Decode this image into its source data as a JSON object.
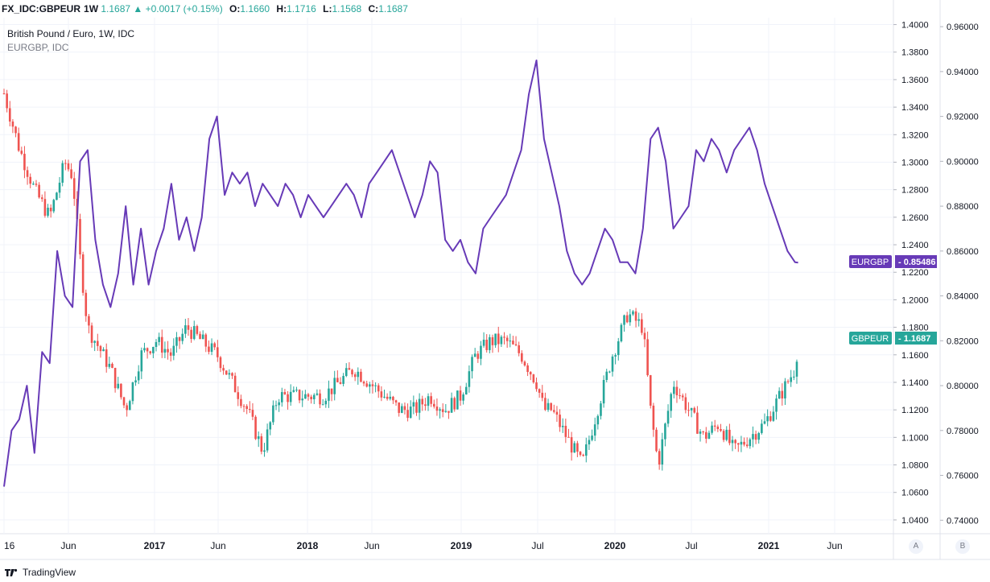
{
  "header": {
    "symbol": "FX_IDC:GBPEUR",
    "timeframe": "1W",
    "last": "1.1687",
    "change": "▲ +0.0017 (+0.15%)",
    "open_label": "O:",
    "open": "1.1660",
    "high_label": "H:",
    "high": "1.1716",
    "low_label": "L:",
    "low": "1.1568",
    "close_label": "C:",
    "close": "1.1687"
  },
  "legend": {
    "main": "British Pound / Euro, 1W, IDC",
    "compare": "EURGBP, IDC"
  },
  "footer": {
    "brand": "TradingView"
  },
  "scale_buttons": {
    "a": "A",
    "b": "B"
  },
  "colors": {
    "up": "#26a69a",
    "down": "#ef5350",
    "compare": "#673ab7"
  },
  "chart_data": {
    "type": "line",
    "title": "British Pound / Euro, 1W, IDC",
    "x_labels": [
      "16",
      "Jun",
      "2017",
      "Jun",
      "2018",
      "Jun",
      "2019",
      "Jul",
      "2020",
      "Jul",
      "2021",
      "Jun"
    ],
    "y_left_axis": {
      "ticks": [
        "1.4000",
        "1.3800",
        "1.3600",
        "1.3400",
        "1.3200",
        "1.3000",
        "1.2800",
        "1.2600",
        "1.2400",
        "1.2200",
        "1.2000",
        "1.1800",
        "1.1600",
        "1.1400",
        "1.1200",
        "1.1000",
        "1.0800",
        "1.0600",
        "1.0400"
      ],
      "range": [
        1.03,
        1.405
      ]
    },
    "y_right_axis": {
      "ticks": [
        "0.96000",
        "0.94000",
        "0.92000",
        "0.90000",
        "0.88000",
        "0.86000",
        "0.84000",
        "0.82000",
        "0.80000",
        "0.78000",
        "0.76000",
        "0.74000"
      ],
      "range": [
        0.734,
        0.964
      ]
    },
    "series": [
      {
        "name": "GBPEUR",
        "axis": "left",
        "price_label": "1.1687",
        "x": [
          2016.0,
          2016.1,
          2016.2,
          2016.3,
          2016.4,
          2016.45,
          2016.5,
          2016.55,
          2016.6,
          2016.7,
          2016.8,
          2016.9,
          2017.0,
          2017.1,
          2017.2,
          2017.3,
          2017.4,
          2017.5,
          2017.6,
          2017.7,
          2017.8,
          2017.9,
          2018.0,
          2018.1,
          2018.2,
          2018.3,
          2018.4,
          2018.5,
          2018.6,
          2018.7,
          2018.8,
          2018.9,
          2019.0,
          2019.1,
          2019.2,
          2019.3,
          2019.4,
          2019.5,
          2019.55,
          2019.6,
          2019.7,
          2019.8,
          2019.9,
          2020.0,
          2020.1,
          2020.2,
          2020.25,
          2020.3,
          2020.4,
          2020.5,
          2020.6,
          2020.7,
          2020.8,
          2020.9,
          2021.0,
          2021.1,
          2021.2,
          2021.22
        ],
        "values": [
          1.35,
          1.31,
          1.28,
          1.26,
          1.3,
          1.29,
          1.23,
          1.18,
          1.17,
          1.15,
          1.12,
          1.16,
          1.17,
          1.16,
          1.18,
          1.17,
          1.16,
          1.14,
          1.12,
          1.09,
          1.13,
          1.13,
          1.13,
          1.13,
          1.14,
          1.15,
          1.14,
          1.13,
          1.12,
          1.12,
          1.13,
          1.12,
          1.13,
          1.16,
          1.17,
          1.17,
          1.16,
          1.14,
          1.12,
          1.12,
          1.1,
          1.08,
          1.12,
          1.16,
          1.19,
          1.18,
          1.12,
          1.08,
          1.14,
          1.12,
          1.1,
          1.11,
          1.09,
          1.1,
          1.11,
          1.13,
          1.15,
          1.1687
        ]
      },
      {
        "name": "EURGBP",
        "axis": "right",
        "price_label": "0.85486",
        "x": [
          2016.0,
          2016.05,
          2016.1,
          2016.15,
          2016.2,
          2016.25,
          2016.3,
          2016.35,
          2016.4,
          2016.45,
          2016.5,
          2016.55,
          2016.6,
          2016.65,
          2016.7,
          2016.75,
          2016.8,
          2016.85,
          2016.9,
          2016.95,
          2017.0,
          2017.05,
          2017.1,
          2017.15,
          2017.2,
          2017.25,
          2017.3,
          2017.35,
          2017.4,
          2017.45,
          2017.5,
          2017.55,
          2017.6,
          2017.65,
          2017.7,
          2017.75,
          2017.8,
          2017.85,
          2017.9,
          2017.95,
          2018.0,
          2018.05,
          2018.1,
          2018.15,
          2018.2,
          2018.25,
          2018.3,
          2018.35,
          2018.4,
          2018.45,
          2018.5,
          2018.55,
          2018.6,
          2018.65,
          2018.7,
          2018.75,
          2018.8,
          2018.85,
          2018.9,
          2018.95,
          2019.0,
          2019.05,
          2019.1,
          2019.15,
          2019.2,
          2019.25,
          2019.3,
          2019.35,
          2019.4,
          2019.45,
          2019.5,
          2019.55,
          2019.6,
          2019.65,
          2019.7,
          2019.75,
          2019.8,
          2019.85,
          2019.9,
          2019.95,
          2020.0,
          2020.05,
          2020.1,
          2020.15,
          2020.2,
          2020.25,
          2020.3,
          2020.35,
          2020.4,
          2020.45,
          2020.5,
          2020.55,
          2020.6,
          2020.65,
          2020.7,
          2020.75,
          2020.8,
          2020.85,
          2020.9,
          2020.95,
          2021.0,
          2021.05,
          2021.1,
          2021.15,
          2021.2,
          2021.22
        ],
        "values": [
          0.755,
          0.78,
          0.785,
          0.8,
          0.77,
          0.815,
          0.81,
          0.86,
          0.84,
          0.835,
          0.9,
          0.905,
          0.865,
          0.845,
          0.835,
          0.85,
          0.88,
          0.845,
          0.87,
          0.845,
          0.86,
          0.87,
          0.89,
          0.865,
          0.875,
          0.86,
          0.875,
          0.91,
          0.92,
          0.885,
          0.895,
          0.89,
          0.895,
          0.88,
          0.89,
          0.885,
          0.88,
          0.89,
          0.885,
          0.875,
          0.885,
          0.88,
          0.875,
          0.88,
          0.885,
          0.89,
          0.885,
          0.875,
          0.89,
          0.895,
          0.9,
          0.905,
          0.895,
          0.885,
          0.875,
          0.885,
          0.9,
          0.895,
          0.865,
          0.86,
          0.865,
          0.855,
          0.85,
          0.87,
          0.875,
          0.88,
          0.885,
          0.895,
          0.905,
          0.93,
          0.945,
          0.91,
          0.895,
          0.88,
          0.86,
          0.85,
          0.845,
          0.85,
          0.86,
          0.87,
          0.865,
          0.855,
          0.855,
          0.85,
          0.87,
          0.91,
          0.915,
          0.9,
          0.87,
          0.875,
          0.88,
          0.905,
          0.9,
          0.91,
          0.905,
          0.895,
          0.905,
          0.91,
          0.915,
          0.905,
          0.89,
          0.88,
          0.87,
          0.86,
          0.855,
          0.85486
        ]
      }
    ],
    "grid": true,
    "legend_position": "top-left"
  }
}
